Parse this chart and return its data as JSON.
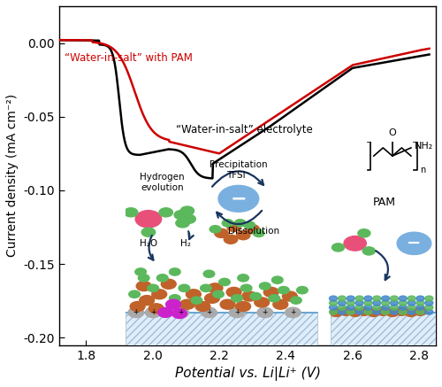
{
  "xlabel": "Potential vs. Li|Li⁺ (V)",
  "ylabel": "Current density (mA cm⁻²)",
  "xlim": [
    1.72,
    2.85
  ],
  "ylim": [
    -0.205,
    0.025
  ],
  "xticks": [
    1.8,
    2.0,
    2.2,
    2.4,
    2.6,
    2.8
  ],
  "yticks": [
    0.0,
    -0.05,
    -0.1,
    -0.15,
    -0.2
  ],
  "ytick_labels": [
    "0.00",
    "-0.05",
    "-0.10",
    "-0.15",
    "-0.20"
  ],
  "label_red": "“Water-in-salt” with PAM",
  "label_black": "“Water-in-salt” electrolyte",
  "color_red": "#cc0000",
  "color_black": "#000000",
  "linewidth": 1.8,
  "bg_color": "#ffffff",
  "green": "#5cb85c",
  "orange": "#c0622a",
  "pink": "#e8507a",
  "magenta": "#cc22cc",
  "gray": "#aaaaaa",
  "blue_light": "#7ab0e0",
  "blue_dark": "#1a3560"
}
